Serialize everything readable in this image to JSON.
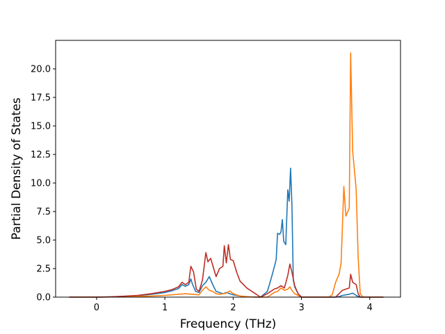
{
  "chart_data": {
    "type": "line",
    "title": "",
    "xlabel": "Frequency (THz)",
    "ylabel": "Partial Density of States",
    "xlim": [
      -0.6,
      4.45
    ],
    "ylim": [
      0,
      22.5
    ],
    "xticks": [
      0,
      1,
      2,
      3,
      4
    ],
    "xtick_labels": [
      "0",
      "1",
      "2",
      "3",
      "4"
    ],
    "yticks": [
      0.0,
      2.5,
      5.0,
      7.5,
      10.0,
      12.5,
      15.0,
      17.5,
      20.0
    ],
    "ytick_labels": [
      "0.0",
      "2.5",
      "5.0",
      "7.5",
      "10.0",
      "12.5",
      "15.0",
      "17.5",
      "20.0"
    ],
    "grid": false,
    "legend": "none",
    "series": [
      {
        "color": "#1f77b4",
        "points": [
          [
            -0.4,
            0
          ],
          [
            0,
            0
          ],
          [
            0.2,
            0.03
          ],
          [
            0.4,
            0.07
          ],
          [
            0.6,
            0.13
          ],
          [
            0.8,
            0.25
          ],
          [
            1.0,
            0.4
          ],
          [
            1.1,
            0.55
          ],
          [
            1.2,
            0.75
          ],
          [
            1.25,
            1.1
          ],
          [
            1.3,
            0.95
          ],
          [
            1.35,
            1.1
          ],
          [
            1.38,
            1.6
          ],
          [
            1.4,
            1.2
          ],
          [
            1.45,
            0.5
          ],
          [
            1.5,
            0.4
          ],
          [
            1.55,
            1.0
          ],
          [
            1.6,
            1.3
          ],
          [
            1.65,
            1.8
          ],
          [
            1.7,
            1.1
          ],
          [
            1.75,
            0.5
          ],
          [
            1.8,
            0.4
          ],
          [
            1.85,
            0.3
          ],
          [
            1.9,
            0.4
          ],
          [
            1.95,
            0.3
          ],
          [
            2.0,
            0.2
          ],
          [
            2.05,
            0.15
          ],
          [
            2.1,
            0.1
          ],
          [
            2.2,
            0.03
          ],
          [
            2.4,
            0
          ],
          [
            2.5,
            0.5
          ],
          [
            2.55,
            1.5
          ],
          [
            2.6,
            2.6
          ],
          [
            2.63,
            3.3
          ],
          [
            2.65,
            5.6
          ],
          [
            2.68,
            5.5
          ],
          [
            2.7,
            5.7
          ],
          [
            2.72,
            6.8
          ],
          [
            2.74,
            4.9
          ],
          [
            2.77,
            4.6
          ],
          [
            2.8,
            9.4
          ],
          [
            2.82,
            8.4
          ],
          [
            2.84,
            11.3
          ],
          [
            2.86,
            8.2
          ],
          [
            2.88,
            1.5
          ],
          [
            2.9,
            0.9
          ],
          [
            2.95,
            0.3
          ],
          [
            3.0,
            0
          ],
          [
            3.5,
            0
          ],
          [
            3.55,
            0.05
          ],
          [
            3.6,
            0.15
          ],
          [
            3.65,
            0.2
          ],
          [
            3.7,
            0.25
          ],
          [
            3.75,
            0.35
          ],
          [
            3.8,
            0.15
          ],
          [
            3.85,
            0
          ],
          [
            4.2,
            0
          ]
        ]
      },
      {
        "color": "#ff7f0e",
        "points": [
          [
            -0.4,
            0
          ],
          [
            0,
            0
          ],
          [
            0.2,
            0.02
          ],
          [
            0.5,
            0.05
          ],
          [
            0.8,
            0.1
          ],
          [
            1.0,
            0.15
          ],
          [
            1.2,
            0.25
          ],
          [
            1.3,
            0.3
          ],
          [
            1.4,
            0.25
          ],
          [
            1.5,
            0.2
          ],
          [
            1.55,
            0.6
          ],
          [
            1.6,
            0.9
          ],
          [
            1.65,
            0.6
          ],
          [
            1.7,
            0.5
          ],
          [
            1.75,
            0.3
          ],
          [
            1.8,
            0.25
          ],
          [
            1.9,
            0.35
          ],
          [
            1.95,
            0.55
          ],
          [
            2.0,
            0.3
          ],
          [
            2.05,
            0.2
          ],
          [
            2.1,
            0.1
          ],
          [
            2.3,
            0
          ],
          [
            2.5,
            0
          ],
          [
            2.6,
            0.4
          ],
          [
            2.65,
            0.5
          ],
          [
            2.7,
            0.8
          ],
          [
            2.75,
            0.6
          ],
          [
            2.8,
            0.7
          ],
          [
            2.83,
            0.9
          ],
          [
            2.86,
            0.6
          ],
          [
            2.9,
            0.3
          ],
          [
            3.0,
            0
          ],
          [
            3.4,
            0
          ],
          [
            3.45,
            0.2
          ],
          [
            3.5,
            1.3
          ],
          [
            3.55,
            2.0
          ],
          [
            3.58,
            3.0
          ],
          [
            3.62,
            9.7
          ],
          [
            3.65,
            7.1
          ],
          [
            3.7,
            7.8
          ],
          [
            3.72,
            21.4
          ],
          [
            3.75,
            12.8
          ],
          [
            3.8,
            9.5
          ],
          [
            3.83,
            3.5
          ],
          [
            3.86,
            0.3
          ],
          [
            3.9,
            0
          ],
          [
            4.2,
            0
          ]
        ]
      },
      {
        "color": "#bb2e25",
        "points": [
          [
            -0.4,
            0
          ],
          [
            0,
            0
          ],
          [
            0.2,
            0.02
          ],
          [
            0.4,
            0.08
          ],
          [
            0.6,
            0.15
          ],
          [
            0.8,
            0.3
          ],
          [
            1.0,
            0.5
          ],
          [
            1.1,
            0.65
          ],
          [
            1.2,
            0.9
          ],
          [
            1.25,
            1.3
          ],
          [
            1.3,
            1.1
          ],
          [
            1.35,
            1.3
          ],
          [
            1.38,
            2.7
          ],
          [
            1.42,
            2.2
          ],
          [
            1.46,
            0.7
          ],
          [
            1.5,
            0.5
          ],
          [
            1.55,
            1.5
          ],
          [
            1.6,
            3.9
          ],
          [
            1.63,
            3.1
          ],
          [
            1.67,
            3.4
          ],
          [
            1.7,
            2.8
          ],
          [
            1.75,
            1.8
          ],
          [
            1.8,
            2.5
          ],
          [
            1.85,
            2.7
          ],
          [
            1.87,
            4.5
          ],
          [
            1.9,
            3.0
          ],
          [
            1.93,
            4.6
          ],
          [
            1.96,
            3.3
          ],
          [
            2.0,
            3.2
          ],
          [
            2.05,
            2.2
          ],
          [
            2.1,
            1.4
          ],
          [
            2.2,
            0.8
          ],
          [
            2.3,
            0.4
          ],
          [
            2.4,
            0
          ],
          [
            2.5,
            0.3
          ],
          [
            2.6,
            0.7
          ],
          [
            2.65,
            0.8
          ],
          [
            2.7,
            1.0
          ],
          [
            2.75,
            0.8
          ],
          [
            2.8,
            1.9
          ],
          [
            2.83,
            2.9
          ],
          [
            2.86,
            2.2
          ],
          [
            2.9,
            1.0
          ],
          [
            2.95,
            0.3
          ],
          [
            3.0,
            0
          ],
          [
            3.5,
            0
          ],
          [
            3.55,
            0.3
          ],
          [
            3.6,
            0.6
          ],
          [
            3.65,
            0.7
          ],
          [
            3.7,
            0.8
          ],
          [
            3.72,
            2.0
          ],
          [
            3.75,
            1.3
          ],
          [
            3.8,
            1.1
          ],
          [
            3.83,
            0.3
          ],
          [
            3.86,
            0
          ],
          [
            4.2,
            0
          ]
        ]
      }
    ]
  }
}
